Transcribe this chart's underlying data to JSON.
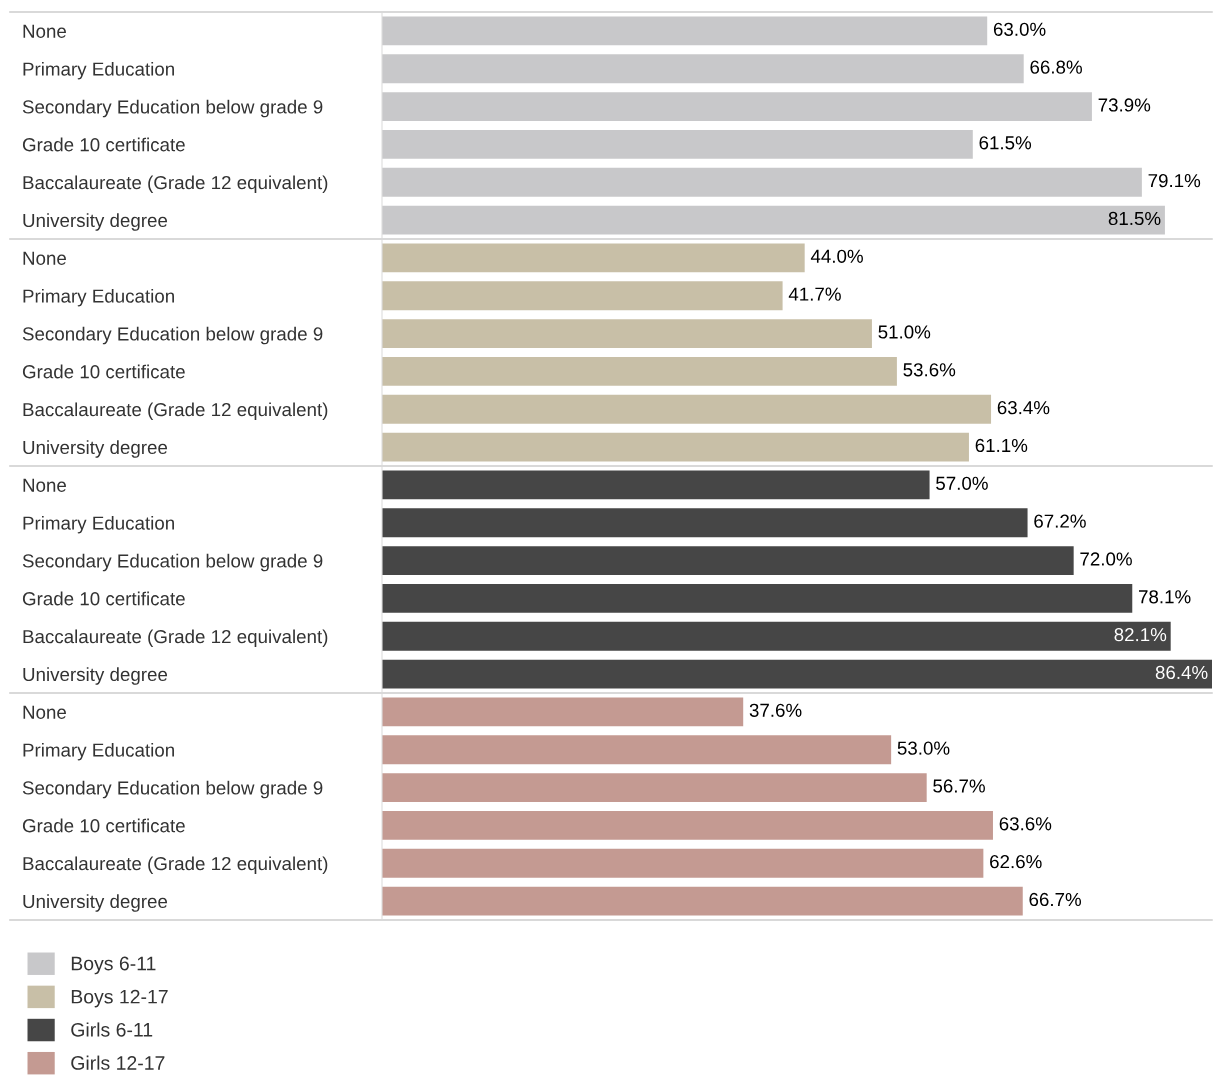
{
  "chart_data": [
    {
      "type": "bar",
      "orientation": "horizontal",
      "categories": [
        "None",
        "Primary Education",
        "Secondary Education below grade 9",
        "Grade 10 certificate",
        "Baccalaureate (Grade 12 equivalent)",
        "University degree"
      ],
      "series": [
        {
          "name": "Boys 6-11",
          "color": "#c8c8ca",
          "values": [
            63.0,
            66.8,
            73.9,
            61.5,
            79.1,
            81.5
          ],
          "value_labels": [
            "63.0%",
            "66.8%",
            "73.9%",
            "61.5%",
            "79.1%",
            "81.5%"
          ]
        }
      ],
      "tick_labels": "y",
      "legend": "bottom"
    },
    {
      "type": "bar",
      "orientation": "horizontal",
      "categories": [
        "None",
        "Primary Education",
        "Secondary Education below grade 9",
        "Grade 10 certificate",
        "Baccalaureate (Grade 12 equivalent)",
        "University degree"
      ],
      "series": [
        {
          "name": "Boys 12-17",
          "color": "#c8bfa7",
          "values": [
            44.0,
            41.7,
            51.0,
            53.6,
            63.4,
            61.1
          ],
          "value_labels": [
            "44.0%",
            "41.7%",
            "51.0%",
            "53.6%",
            "63.4%",
            "61.1%"
          ]
        }
      ],
      "tick_labels": "y",
      "legend": "bottom"
    },
    {
      "type": "bar",
      "orientation": "horizontal",
      "categories": [
        "None",
        "Primary Education",
        "Secondary Education below grade 9",
        "Grade 10 certificate",
        "Baccalaureate (Grade 12 equivalent)",
        "University degree"
      ],
      "series": [
        {
          "name": "Girls 6-11",
          "color": "#464646",
          "values": [
            57.0,
            67.2,
            72.0,
            78.1,
            82.1,
            86.4
          ],
          "value_labels": [
            "57.0%",
            "67.2%",
            "72.0%",
            "78.1%",
            "82.1%",
            "86.4%"
          ]
        }
      ],
      "tick_labels": "y",
      "legend": "bottom"
    },
    {
      "type": "bar",
      "orientation": "horizontal",
      "categories": [
        "None",
        "Primary Education",
        "Secondary Education below grade 9",
        "Grade 10 certificate",
        "Baccalaureate (Grade 12 equivalent)",
        "University degree"
      ],
      "series": [
        {
          "name": "Girls 12-17",
          "color": "#c49a92",
          "values": [
            37.6,
            53.0,
            56.7,
            63.6,
            62.6,
            66.7
          ],
          "value_labels": [
            "37.6%",
            "53.0%",
            "56.7%",
            "63.6%",
            "62.6%",
            "66.7%"
          ]
        }
      ],
      "tick_labels": "y",
      "legend": "bottom"
    }
  ]
}
